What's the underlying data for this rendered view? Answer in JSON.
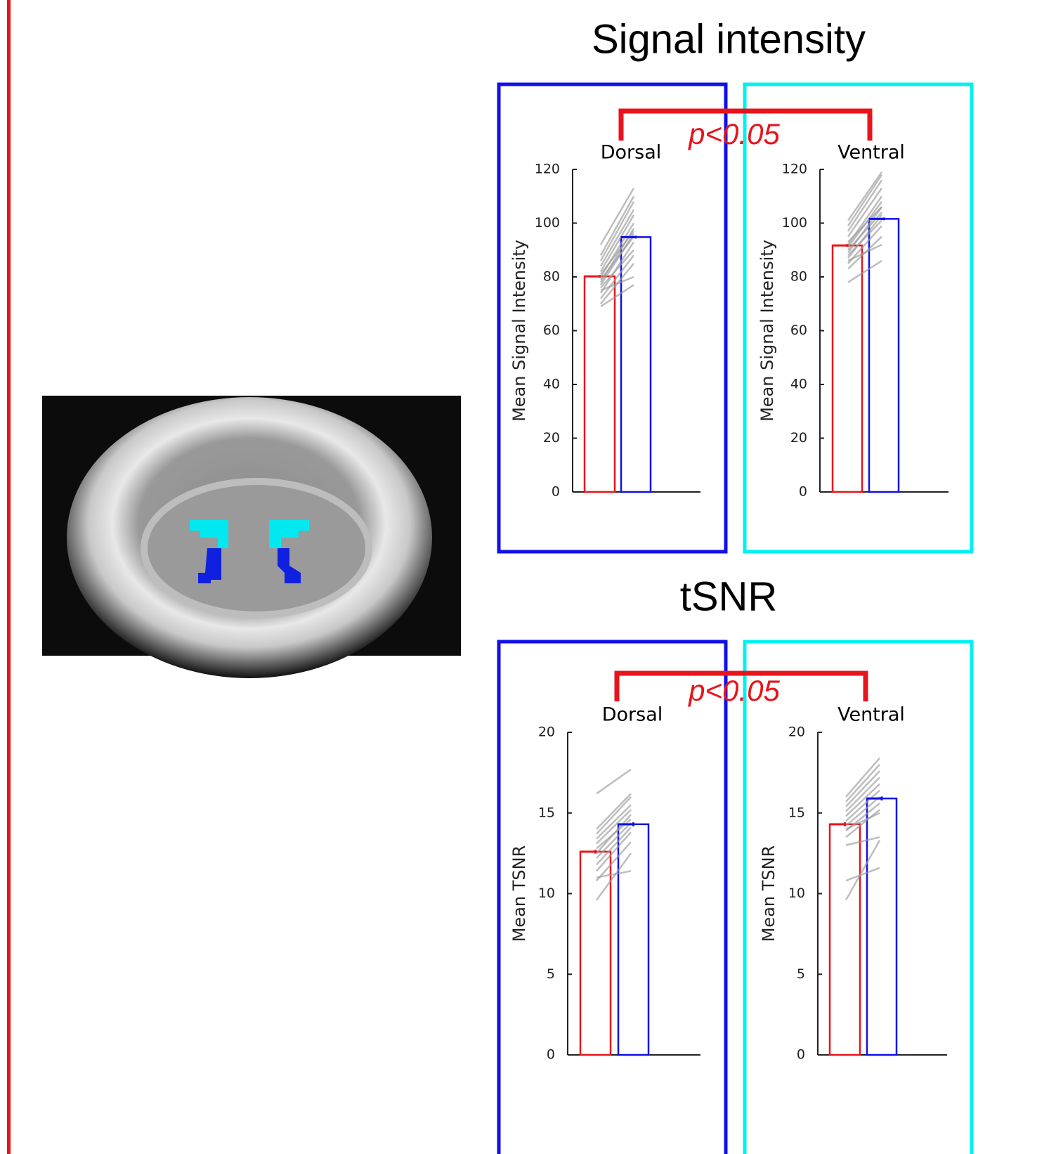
{
  "sections": [
    {
      "title": "Signal intensity",
      "annotation": "p<0.05"
    },
    {
      "title": "tSNR",
      "annotation": "p<0.05"
    }
  ],
  "chart_data": [
    {
      "type": "bar",
      "title": "Dorsal",
      "ylabel": "Mean Signal Intensity",
      "categories": [
        null,
        null
      ],
      "values": [
        80.2,
        94.8
      ],
      "errors": [
        0.8,
        0.8
      ],
      "colors": [
        "#e8141c",
        "#1010e8"
      ],
      "ylim": [
        0,
        120
      ],
      "yticks": [
        0,
        20,
        40,
        60,
        80,
        100,
        120
      ],
      "subjects": [
        [
          70,
          85
        ],
        [
          72,
          88
        ],
        [
          74,
          93
        ],
        [
          76,
          90
        ],
        [
          77,
          96
        ],
        [
          78,
          98
        ],
        [
          79,
          95
        ],
        [
          80,
          100
        ],
        [
          81,
          97
        ],
        [
          82,
          103
        ],
        [
          84,
          105
        ],
        [
          86,
          108
        ],
        [
          88,
          110
        ],
        [
          92,
          113
        ],
        [
          75,
          80
        ],
        [
          69,
          77
        ]
      ]
    },
    {
      "type": "bar",
      "title": "Ventral",
      "ylabel": "Mean Signal Intensity",
      "categories": [
        null,
        null
      ],
      "values": [
        91.7,
        101.6
      ],
      "errors": [
        0.8,
        0.8
      ],
      "colors": [
        "#e8141c",
        "#1010e8"
      ],
      "ylim": [
        0,
        120
      ],
      "yticks": [
        0,
        20,
        40,
        60,
        80,
        100,
        120
      ],
      "subjects": [
        [
          78,
          86
        ],
        [
          83,
          95
        ],
        [
          85,
          99
        ],
        [
          87,
          103
        ],
        [
          88,
          101
        ],
        [
          89,
          106
        ],
        [
          90,
          104
        ],
        [
          91,
          108
        ],
        [
          92,
          110
        ],
        [
          93,
          106
        ],
        [
          95,
          113
        ],
        [
          97,
          116
        ],
        [
          99,
          118
        ],
        [
          101,
          119
        ],
        [
          86,
          92
        ]
      ]
    },
    {
      "type": "bar",
      "title": "Dorsal",
      "ylabel": "Mean TSNR",
      "categories": [
        null,
        null
      ],
      "values": [
        12.6,
        14.3
      ],
      "errors": [
        0.1,
        0.1
      ],
      "colors": [
        "#e8141c",
        "#1010e8"
      ],
      "ylim": [
        0,
        20
      ],
      "yticks": [
        0,
        5,
        10,
        15,
        20
      ],
      "subjects": [
        [
          9.6,
          12.5
        ],
        [
          10.8,
          13.2
        ],
        [
          11.4,
          13.8
        ],
        [
          11.8,
          14.1
        ],
        [
          12.2,
          14.4
        ],
        [
          12.5,
          14.9
        ],
        [
          12.8,
          14.6
        ],
        [
          13.1,
          15.2
        ],
        [
          13.4,
          15.5
        ],
        [
          13.7,
          16.0
        ],
        [
          14.0,
          16.2
        ],
        [
          16.2,
          17.7
        ],
        [
          11.0,
          11.4
        ]
      ]
    },
    {
      "type": "bar",
      "title": "Ventral",
      "ylabel": "Mean TSNR",
      "categories": [
        null,
        null
      ],
      "values": [
        14.3,
        15.9
      ],
      "errors": [
        0.1,
        0.1
      ],
      "colors": [
        "#e8141c",
        "#1010e8"
      ],
      "ylim": [
        0,
        20
      ],
      "yticks": [
        0,
        5,
        10,
        15,
        20
      ],
      "subjects": [
        [
          9.6,
          13.3
        ],
        [
          10.8,
          11.6
        ],
        [
          13.0,
          13.5
        ],
        [
          13.5,
          15.2
        ],
        [
          13.9,
          15.6
        ],
        [
          14.2,
          16.0
        ],
        [
          14.5,
          16.4
        ],
        [
          14.8,
          16.8
        ],
        [
          15.1,
          17.2
        ],
        [
          15.4,
          17.6
        ],
        [
          15.7,
          18.0
        ],
        [
          16.0,
          18.4
        ],
        [
          14.0,
          15.0
        ]
      ]
    }
  ]
}
